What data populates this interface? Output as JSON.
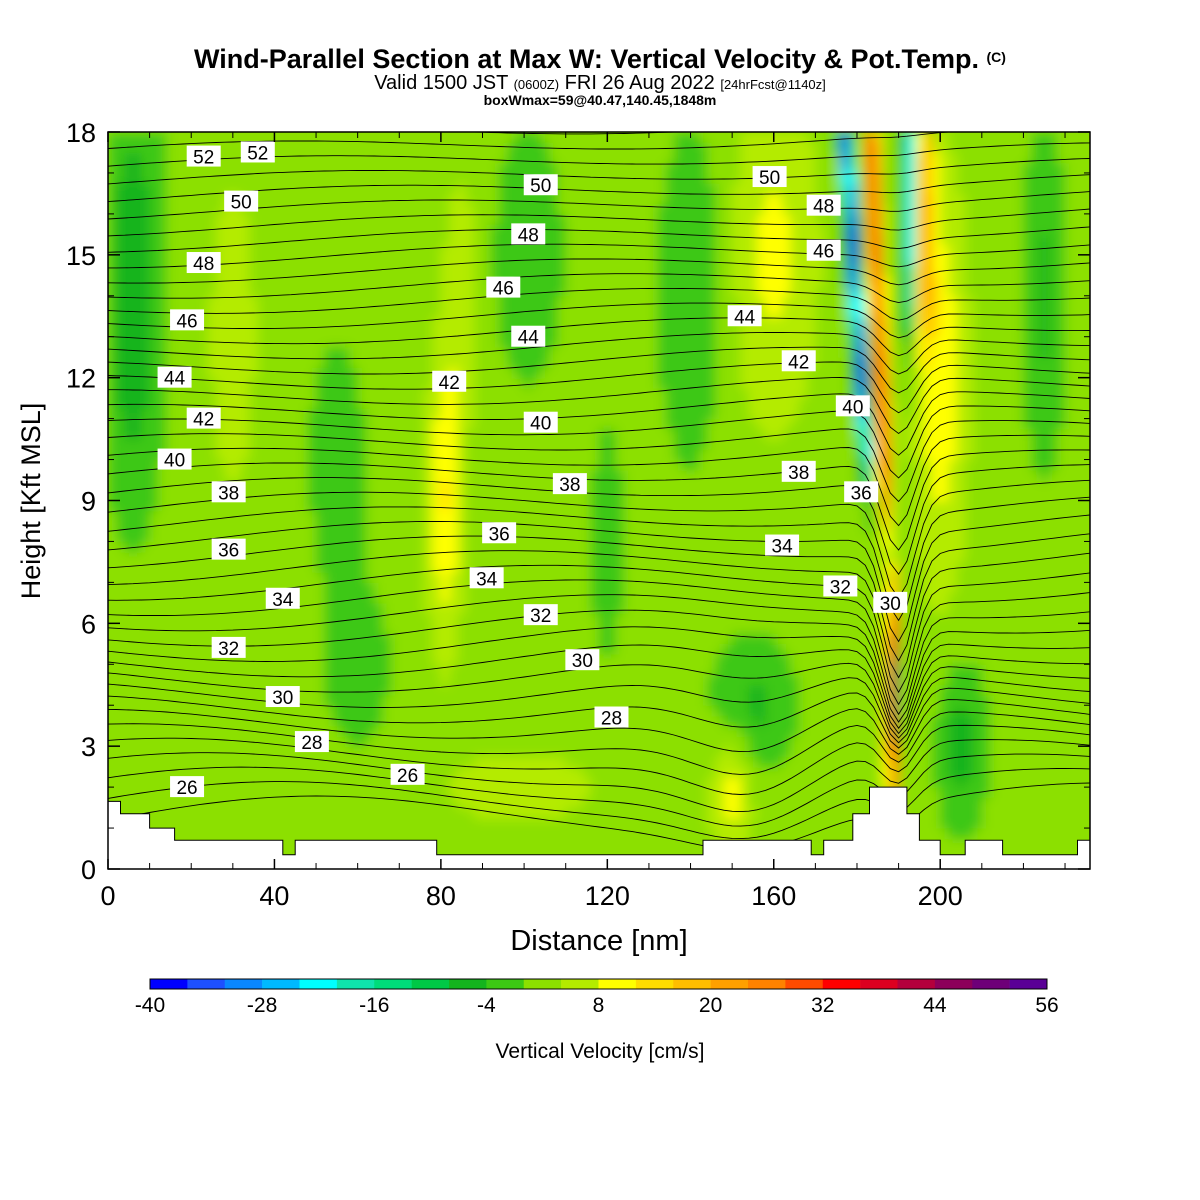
{
  "title": {
    "main": "Wind-Parallel Section at Max W: Vertical Velocity & Pot.Temp.",
    "copyright": "(C)",
    "sub_valid": "Valid 1500 JST",
    "sub_z": "(0600Z)",
    "sub_date": "FRI 26 Aug 2022",
    "sub_fcst": "[24hrFcst@1140z]",
    "sub2": "boxWmax=59@40.47,140.45,1848m"
  },
  "chart_data": {
    "type": "heatmap",
    "xlabel": "Distance [nm]",
    "ylabel": "Height [Kft MSL]",
    "xlim": [
      0,
      236
    ],
    "ylim": [
      0,
      18
    ],
    "x_ticks": [
      "0",
      "40",
      "80",
      "120",
      "160",
      "200"
    ],
    "y_ticks": [
      "0",
      "3",
      "6",
      "9",
      "12",
      "15",
      "18"
    ],
    "colorbar": {
      "label": "Vertical Velocity [cm/s]",
      "range": [
        -40,
        56
      ],
      "step": 4,
      "tick_labels": [
        "-40",
        "-28",
        "-16",
        "-4",
        "8",
        "20",
        "32",
        "44",
        "56"
      ],
      "colors": [
        "#0000ff",
        "#1e50ff",
        "#0a87ff",
        "#00b9ff",
        "#00ffff",
        "#10e4ac",
        "#00dc7a",
        "#00c846",
        "#14b41e",
        "#3cc814",
        "#8ce000",
        "#b4eb00",
        "#ffff00",
        "#ffdc00",
        "#ffbe00",
        "#ffa000",
        "#ff8200",
        "#ff4b00",
        "#ff0000",
        "#dc0020",
        "#b4003c",
        "#8c005a",
        "#6e0078",
        "#5a0096"
      ]
    },
    "theta_contour_labels": [
      {
        "label": "52",
        "x": 23,
        "y": 17.4
      },
      {
        "label": "52",
        "x": 36,
        "y": 17.5
      },
      {
        "label": "50",
        "x": 32,
        "y": 16.3
      },
      {
        "label": "48",
        "x": 23,
        "y": 14.8
      },
      {
        "label": "46",
        "x": 19,
        "y": 13.4
      },
      {
        "label": "44",
        "x": 16,
        "y": 12.0
      },
      {
        "label": "42",
        "x": 23,
        "y": 11.0
      },
      {
        "label": "40",
        "x": 16,
        "y": 10.0
      },
      {
        "label": "38",
        "x": 29,
        "y": 9.2
      },
      {
        "label": "36",
        "x": 29,
        "y": 7.8
      },
      {
        "label": "34",
        "x": 42,
        "y": 6.6
      },
      {
        "label": "32",
        "x": 29,
        "y": 5.4
      },
      {
        "label": "30",
        "x": 42,
        "y": 4.2
      },
      {
        "label": "28",
        "x": 49,
        "y": 3.1
      },
      {
        "label": "26",
        "x": 19,
        "y": 2.0
      },
      {
        "label": "50",
        "x": 104,
        "y": 16.7
      },
      {
        "label": "48",
        "x": 101,
        "y": 15.5
      },
      {
        "label": "46",
        "x": 95,
        "y": 14.2
      },
      {
        "label": "44",
        "x": 101,
        "y": 13.0
      },
      {
        "label": "42",
        "x": 82,
        "y": 11.9
      },
      {
        "label": "40",
        "x": 104,
        "y": 10.9
      },
      {
        "label": "38",
        "x": 111,
        "y": 9.4
      },
      {
        "label": "36",
        "x": 94,
        "y": 8.2
      },
      {
        "label": "34",
        "x": 91,
        "y": 7.1
      },
      {
        "label": "32",
        "x": 104,
        "y": 6.2
      },
      {
        "label": "30",
        "x": 114,
        "y": 5.1
      },
      {
        "label": "28",
        "x": 121,
        "y": 3.7
      },
      {
        "label": "26",
        "x": 72,
        "y": 2.3
      },
      {
        "label": "50",
        "x": 159,
        "y": 16.9
      },
      {
        "label": "48",
        "x": 172,
        "y": 16.2
      },
      {
        "label": "46",
        "x": 172,
        "y": 15.1
      },
      {
        "label": "44",
        "x": 153,
        "y": 13.5
      },
      {
        "label": "42",
        "x": 166,
        "y": 12.4
      },
      {
        "label": "40",
        "x": 179,
        "y": 11.3
      },
      {
        "label": "38",
        "x": 166,
        "y": 9.7
      },
      {
        "label": "36",
        "x": 181,
        "y": 9.2
      },
      {
        "label": "34",
        "x": 162,
        "y": 7.9
      },
      {
        "label": "32",
        "x": 176,
        "y": 6.9
      },
      {
        "label": "30",
        "x": 188,
        "y": 6.5
      }
    ],
    "terrain_profile_kft": [
      [
        0,
        1.65
      ],
      [
        3,
        1.65
      ],
      [
        3,
        1.35
      ],
      [
        10,
        1.35
      ],
      [
        10,
        1.0
      ],
      [
        16,
        1.0
      ],
      [
        16,
        0.7
      ],
      [
        42,
        0.7
      ],
      [
        42,
        0.35
      ],
      [
        45,
        0.35
      ],
      [
        45,
        0.7
      ],
      [
        79,
        0.7
      ],
      [
        79,
        0.35
      ],
      [
        143,
        0.35
      ],
      [
        143,
        0.7
      ],
      [
        169,
        0.7
      ],
      [
        169,
        0.35
      ],
      [
        172,
        0.35
      ],
      [
        172,
        0.7
      ],
      [
        179,
        0.7
      ],
      [
        179,
        1.35
      ],
      [
        183,
        1.35
      ],
      [
        183,
        2.0
      ],
      [
        192,
        2.0
      ],
      [
        192,
        1.35
      ],
      [
        195,
        1.35
      ],
      [
        195,
        0.7
      ],
      [
        200,
        0.7
      ],
      [
        200,
        0.35
      ],
      [
        206,
        0.35
      ],
      [
        206,
        0.7
      ],
      [
        215,
        0.7
      ],
      [
        215,
        0.35
      ],
      [
        233,
        0.35
      ],
      [
        233,
        0.7
      ],
      [
        236,
        0.7
      ]
    ]
  }
}
